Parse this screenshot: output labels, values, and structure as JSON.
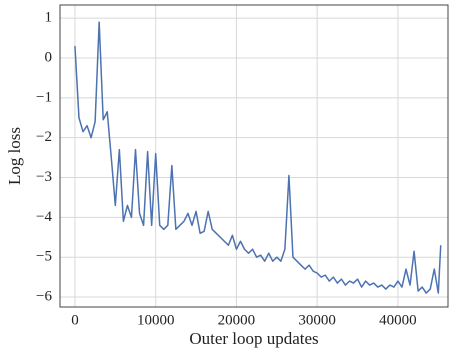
{
  "chart_data": {
    "type": "line",
    "xlabel": "Outer loop updates",
    "ylabel": "Log loss",
    "x": [
      0,
      500,
      1000,
      1500,
      2000,
      2500,
      3000,
      3500,
      4000,
      4500,
      5000,
      5500,
      6000,
      6500,
      7000,
      7500,
      8000,
      8500,
      9000,
      9500,
      10000,
      10500,
      11000,
      11500,
      12000,
      12500,
      13000,
      13500,
      14000,
      14500,
      15000,
      15500,
      16000,
      16500,
      17000,
      17500,
      18000,
      18500,
      19000,
      19500,
      20000,
      20500,
      21000,
      21500,
      22000,
      22500,
      23000,
      23500,
      24000,
      24500,
      25000,
      25500,
      26000,
      26500,
      27000,
      27500,
      28000,
      28500,
      29000,
      29500,
      30000,
      30500,
      31000,
      31500,
      32000,
      32500,
      33000,
      33500,
      34000,
      34500,
      35000,
      35500,
      36000,
      36500,
      37000,
      37500,
      38000,
      38500,
      39000,
      39500,
      40000,
      40500,
      41000,
      41500,
      42000,
      42500,
      43000,
      43500,
      44000,
      44500,
      45000,
      45300
    ],
    "series": [
      {
        "name": "Log loss",
        "color": "#4c72b0",
        "values": [
          0.3,
          -1.5,
          -1.85,
          -1.7,
          -2.0,
          -1.6,
          0.9,
          -1.55,
          -1.35,
          -2.5,
          -3.7,
          -2.3,
          -4.1,
          -3.7,
          -4.0,
          -2.3,
          -3.9,
          -4.2,
          -2.35,
          -4.2,
          -2.4,
          -4.2,
          -4.3,
          -4.2,
          -2.7,
          -4.3,
          -4.2,
          -4.1,
          -3.9,
          -4.2,
          -3.85,
          -4.4,
          -4.35,
          -3.85,
          -4.3,
          -4.4,
          -4.5,
          -4.6,
          -4.7,
          -4.45,
          -4.8,
          -4.6,
          -4.8,
          -4.9,
          -4.8,
          -5.0,
          -4.95,
          -5.1,
          -4.9,
          -5.1,
          -5.0,
          -5.1,
          -4.8,
          -2.95,
          -5.0,
          -5.1,
          -5.2,
          -5.3,
          -5.2,
          -5.35,
          -5.4,
          -5.5,
          -5.45,
          -5.6,
          -5.5,
          -5.65,
          -5.55,
          -5.7,
          -5.6,
          -5.65,
          -5.55,
          -5.75,
          -5.6,
          -5.7,
          -5.65,
          -5.75,
          -5.7,
          -5.8,
          -5.7,
          -5.75,
          -5.6,
          -5.75,
          -5.3,
          -5.7,
          -4.85,
          -5.85,
          -5.75,
          -5.9,
          -5.8,
          -5.3,
          -5.9,
          -4.7
        ]
      }
    ],
    "xlim": [
      -1850,
      46200
    ],
    "ylim": [
      -6.25,
      1.33
    ],
    "xticks": [
      0,
      10000,
      20000,
      30000,
      40000
    ],
    "yticks": [
      {
        "value": -6,
        "label": "−6"
      },
      {
        "value": -5,
        "label": "−5"
      },
      {
        "value": -4,
        "label": "−4"
      },
      {
        "value": -3,
        "label": "−3"
      },
      {
        "value": -2,
        "label": "−2"
      },
      {
        "value": -1,
        "label": "−1"
      },
      0,
      1
    ],
    "grid": true
  }
}
